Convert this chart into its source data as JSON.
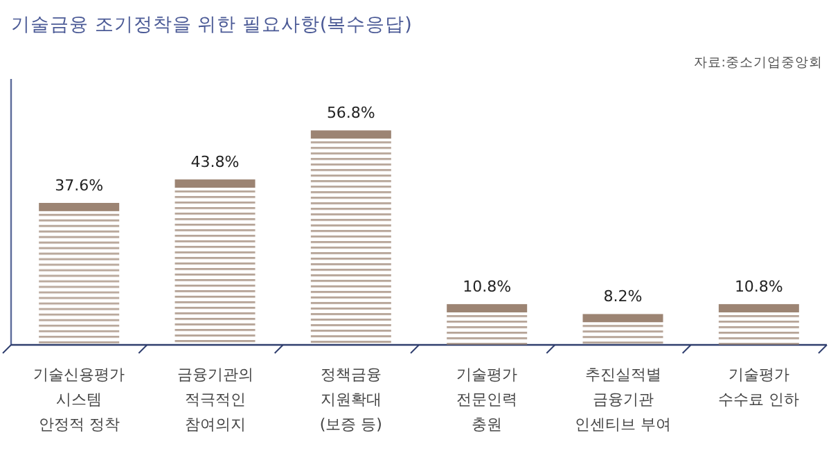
{
  "chart_data": {
    "type": "bar",
    "title": "기술금융 조기정착을 위한 필요사항(복수응답)",
    "annotations": [
      "자료:중소기업중앙회"
    ],
    "categories": [
      "기술신용평가\n시스템\n안정적 정착",
      "금융기관의\n적극적인\n참여의지",
      "정책금융\n지원확대\n(보증 등)",
      "기술평가\n전문인력\n충원",
      "추진실적별\n금융기관\n인센티브 부여",
      "기술평가\n수수료 인하"
    ],
    "values": [
      37.6,
      43.8,
      56.8,
      10.8,
      8.2,
      10.8
    ],
    "value_labels": [
      "37.6%",
      "43.8%",
      "56.8%",
      "10.8%",
      "8.2%",
      "10.8%"
    ],
    "color": "#9c8473"
  }
}
